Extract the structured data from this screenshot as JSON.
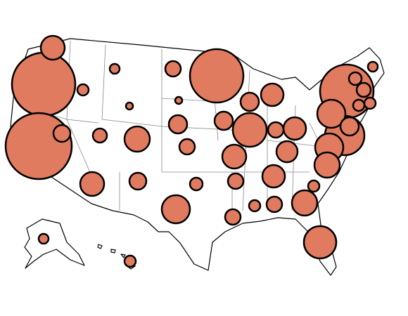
{
  "chart_data": {
    "type": "bubble-map",
    "values": [
      2025,
      2209,
      1444,
      1444,
      784,
      576,
      400,
      400,
      400,
      529,
      324,
      324,
      324,
      289,
      289,
      289,
      256,
      256,
      256,
      225,
      169,
      169,
      169,
      169,
      144,
      144,
      121,
      121,
      121,
      121,
      121,
      121,
      100,
      100,
      81,
      81,
      64,
      64,
      64,
      64,
      64,
      64,
      49,
      49,
      49,
      25,
      25
    ],
    "color": "#e07b5f"
  }
}
